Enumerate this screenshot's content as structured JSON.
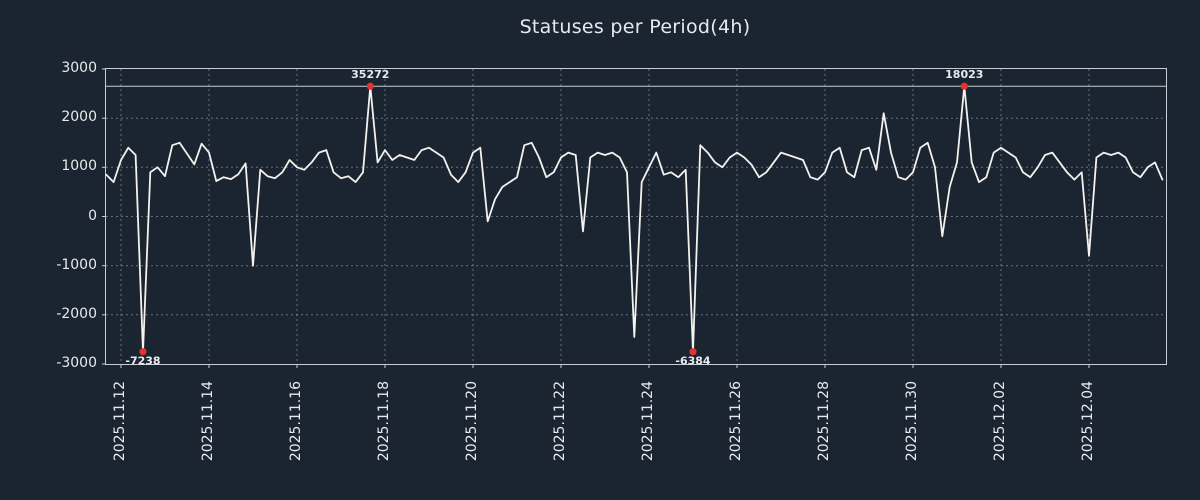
{
  "title": "Statuses per Period(4h)",
  "chart_data": {
    "type": "line",
    "title": "Statuses per Period(4h)",
    "xlabel": "",
    "ylabel": "",
    "ylim": [
      -3000,
      3000
    ],
    "y_ticks": [
      3000,
      2000,
      1000,
      0,
      -1000,
      -2000,
      -3000
    ],
    "y_grid": [
      2000,
      1000,
      0,
      -1000,
      -2000
    ],
    "x_tick_labels": [
      "2025.11.12",
      "2025.11.14",
      "2025.11.16",
      "2025.11.18",
      "2025.11.20",
      "2025.11.22",
      "2025.11.24",
      "2025.11.26",
      "2025.11.28",
      "2025.11.30",
      "2025.12.02",
      "2025.12.04"
    ],
    "x_tick_days": [
      0,
      2,
      4,
      6,
      8,
      10,
      12,
      14,
      16,
      18,
      20,
      22
    ],
    "x_range_days": [
      -0.34,
      23.75
    ],
    "x_start_day": -0.3333,
    "x_step_days": 0.16667,
    "period": "4h",
    "clip_max": 2650,
    "clip_min": -2750,
    "grid": "dashed",
    "legend": "none",
    "values": [
      850,
      700,
      1150,
      1400,
      1250,
      -7238,
      900,
      1000,
      820,
      1450,
      1500,
      1280,
      1060,
      1480,
      1300,
      720,
      800,
      760,
      860,
      1080,
      -1000,
      950,
      820,
      780,
      900,
      1150,
      1000,
      950,
      1100,
      1300,
      1350,
      900,
      780,
      820,
      700,
      900,
      35272,
      1100,
      1350,
      1150,
      1250,
      1200,
      1150,
      1350,
      1400,
      1300,
      1200,
      850,
      700,
      900,
      1300,
      1400,
      -100,
      350,
      600,
      700,
      800,
      1450,
      1500,
      1200,
      800,
      900,
      1200,
      1300,
      1250,
      -300,
      1200,
      1300,
      1250,
      1300,
      1200,
      900,
      -2450,
      700,
      1000,
      1300,
      850,
      900,
      800,
      950,
      -6384,
      1450,
      1300,
      1100,
      1000,
      1200,
      1300,
      1200,
      1050,
      800,
      900,
      1100,
      1300,
      1250,
      1200,
      1150,
      800,
      750,
      900,
      1300,
      1400,
      900,
      800,
      1350,
      1400,
      950,
      2100,
      1300,
      800,
      750,
      900,
      1400,
      1500,
      1000,
      -400,
      600,
      1100,
      18023,
      1100,
      700,
      800,
      1300,
      1400,
      1300,
      1200,
      900,
      800,
      1000,
      1250,
      1300,
      1100,
      900,
      750,
      900,
      -800,
      1200,
      1300,
      1250,
      1300,
      1200,
      900,
      800,
      1000,
      1100,
      750
    ],
    "annotations": [
      {
        "label": "-7238",
        "value": -7238,
        "index": 5,
        "position": "below"
      },
      {
        "label": "35272",
        "value": 35272,
        "index": 36,
        "position": "above"
      },
      {
        "label": "-6384",
        "value": -6384,
        "index": 80,
        "position": "below"
      },
      {
        "label": "18023",
        "value": 18023,
        "index": 117,
        "position": "above"
      }
    ],
    "colors": {
      "background": "#1b2431",
      "line": "#f4f2ee",
      "grid": "#aab2bd",
      "frame": "#c9ced6",
      "marker": "#e53131",
      "text": "#e8eaed"
    }
  }
}
